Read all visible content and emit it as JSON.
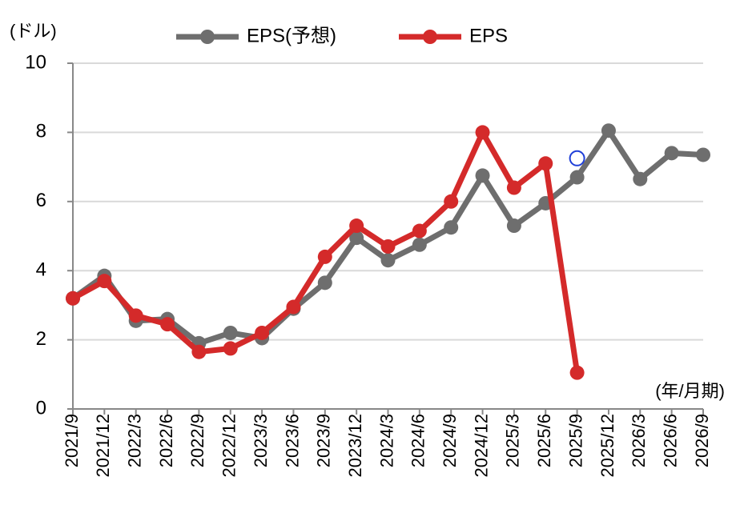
{
  "chart_data": {
    "type": "line",
    "y_axis_label": "(ドル)",
    "x_axis_label": "(年/月期)",
    "categories": [
      "2021/9",
      "2021/12",
      "2022/3",
      "2022/6",
      "2022/9",
      "2022/12",
      "2023/3",
      "2023/6",
      "2023/9",
      "2023/12",
      "2024/3",
      "2024/6",
      "2024/9",
      "2024/12",
      "2025/3",
      "2025/6",
      "2025/9",
      "2025/12",
      "2026/3",
      "2026/6",
      "2026/9"
    ],
    "series": [
      {
        "name": "EPS(予想)",
        "color": "#6e6e6e",
        "values": [
          3.2,
          3.85,
          2.55,
          2.6,
          1.9,
          2.2,
          2.05,
          2.9,
          3.65,
          4.95,
          4.3,
          4.75,
          5.25,
          6.75,
          5.3,
          5.95,
          6.7,
          8.05,
          6.65,
          7.4,
          7.35
        ]
      },
      {
        "name": "EPS",
        "color": "#d42a2a",
        "values": [
          3.2,
          3.7,
          2.7,
          2.45,
          1.65,
          1.75,
          2.2,
          2.95,
          4.4,
          5.3,
          4.7,
          5.15,
          6.0,
          8.0,
          6.4,
          7.1,
          1.05,
          null,
          null,
          null,
          null
        ]
      }
    ],
    "annotation_points": [
      {
        "category": "2025/9",
        "value": 7.25,
        "color": "#1f3fd8"
      }
    ],
    "ylim": [
      0,
      10
    ],
    "yticks": [
      0,
      2,
      4,
      6,
      8,
      10
    ],
    "grid": true
  }
}
